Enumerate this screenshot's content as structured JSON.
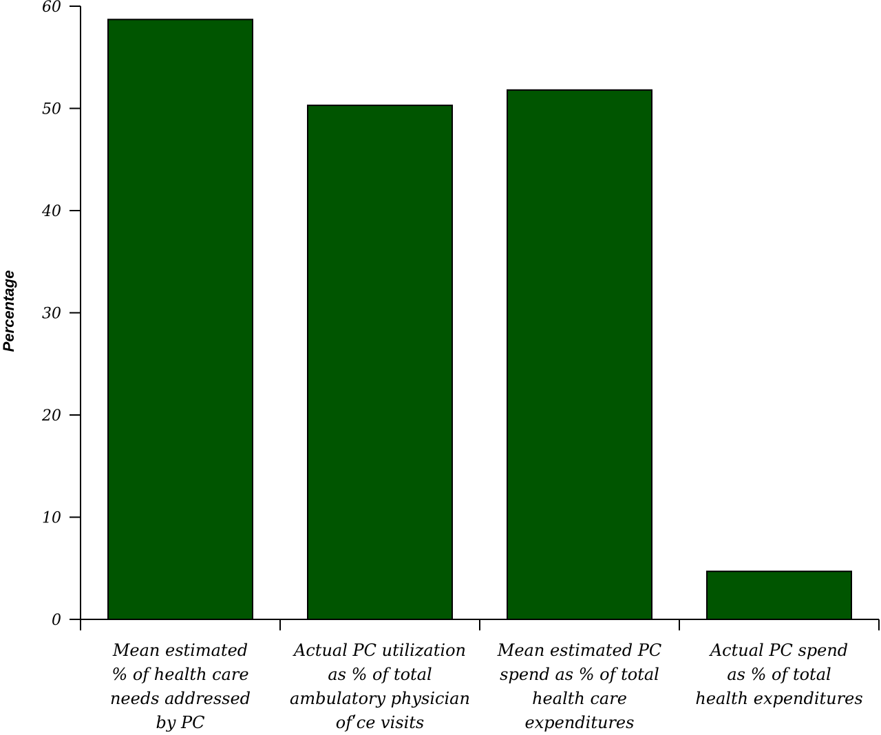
{
  "chart_data": {
    "type": "bar",
    "ylabel": "Percentage",
    "xlabel": "",
    "ylim": [
      0,
      60
    ],
    "yticks": [
      0,
      10,
      20,
      30,
      40,
      50,
      60
    ],
    "ytick_labels": [
      "0",
      "10",
      "20",
      "30",
      "40",
      "50",
      "60"
    ],
    "grid": false,
    "bar_color": "#005500",
    "categories": [
      [
        "Mean estimated",
        "% of health care",
        "needs addressed",
        "by PC"
      ],
      [
        "Actual PC utilization",
        "as % of total",
        "ambulatory physician",
        "ofʹce visits"
      ],
      [
        "Mean estimated PC",
        "spend as % of total",
        "health care",
        "expenditures"
      ],
      [
        "Actual PC spend",
        "as % of total",
        "health expenditures"
      ]
    ],
    "values": [
      58.7,
      50.3,
      51.8,
      4.7
    ]
  }
}
